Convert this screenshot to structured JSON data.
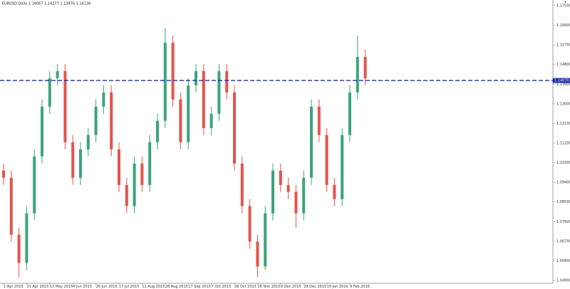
{
  "chart_data": {
    "type": "candlestick",
    "title": "EURUSD,Daily  1.14067 1.14277 1.13976 1.14136",
    "categories": [
      "1 Apr 2015",
      null,
      null,
      "21 Apr 2015",
      null,
      null,
      "13 May 2015",
      null,
      null,
      "4 Jun 2015",
      null,
      null,
      "26 Jun 2015",
      null,
      null,
      "17 Jul 2015",
      null,
      null,
      "11 Aug 2015",
      null,
      null,
      "28 Aug 2015",
      null,
      null,
      "17 Sep 2015",
      null,
      null,
      "7 Oct 2015",
      null,
      null,
      "28 Oct 2015",
      null,
      null,
      "18 Nov 2015",
      null,
      null,
      "8 Dec 2015",
      null,
      null,
      "29 Dec 2015",
      null,
      null,
      "19 Jan 2016",
      null,
      null,
      "9 Feb 2016",
      null,
      null
    ],
    "open": [
      1.0994,
      1.0961,
      1.07,
      1.057,
      1.0798,
      1.1059,
      1.1287,
      1.1417,
      1.145,
      1.1124,
      1.0961,
      1.1091,
      1.1157,
      1.1287,
      1.1352,
      1.1091,
      1.0928,
      1.0831,
      1.1026,
      1.0928,
      1.1124,
      1.1222,
      1.158,
      1.132,
      1.1124,
      1.1385,
      1.145,
      1.1189,
      1.1254,
      1.145,
      1.1352,
      1.1026,
      1.0831,
      1.0668,
      1.0554,
      1.0798,
      1.0994,
      1.0928,
      1.0896,
      1.0798,
      1.0961,
      1.1287,
      1.1157,
      1.0928,
      1.0863,
      1.1157,
      1.1352,
      1.1515
    ],
    "high": [
      1.1026,
      1.0994,
      1.0733,
      1.0831,
      1.1091,
      1.132,
      1.145,
      1.1483,
      1.1483,
      1.1157,
      1.1124,
      1.1189,
      1.132,
      1.1385,
      1.1385,
      1.1124,
      1.0961,
      1.1059,
      1.1059,
      1.1157,
      1.1254,
      1.1646,
      1.1613,
      1.1352,
      1.1417,
      1.1483,
      1.1483,
      1.1287,
      1.1483,
      1.1483,
      1.1385,
      1.1059,
      1.0863,
      1.07,
      1.0831,
      1.1026,
      1.1026,
      1.0961,
      1.0928,
      1.0994,
      1.132,
      1.132,
      1.1189,
      1.0961,
      1.1189,
      1.1385,
      1.1613,
      1.1548
    ],
    "low": [
      1.0928,
      1.0668,
      1.0505,
      1.0537,
      1.0765,
      1.1026,
      1.1254,
      1.1385,
      1.1091,
      1.0928,
      1.0928,
      1.1059,
      1.1124,
      1.1254,
      1.1059,
      1.0896,
      1.0798,
      1.0798,
      1.0896,
      1.0896,
      1.1091,
      1.1189,
      1.1287,
      1.1091,
      1.1091,
      1.1352,
      1.1157,
      1.1157,
      1.1222,
      1.132,
      1.0994,
      1.0798,
      1.0635,
      1.0505,
      1.0537,
      1.0765,
      1.0896,
      1.0863,
      1.0733,
      1.0765,
      1.0928,
      1.1124,
      1.0896,
      1.0831,
      1.0831,
      1.1124,
      1.132,
      1.1385
    ],
    "close": [
      1.0961,
      1.07,
      1.057,
      1.0798,
      1.1059,
      1.1287,
      1.1417,
      1.145,
      1.1124,
      1.0961,
      1.1091,
      1.1157,
      1.1287,
      1.1352,
      1.1091,
      1.0928,
      1.0831,
      1.1026,
      1.0928,
      1.1124,
      1.1222,
      1.158,
      1.132,
      1.1124,
      1.1385,
      1.145,
      1.1189,
      1.1254,
      1.145,
      1.1352,
      1.1026,
      1.0831,
      1.0668,
      1.0554,
      1.0798,
      1.0994,
      1.0928,
      1.0896,
      1.0798,
      1.0961,
      1.1287,
      1.1157,
      1.0928,
      1.0863,
      1.1157,
      1.1352,
      1.1515,
      1.1417
    ],
    "up_color": "#3aa57a",
    "down_color": "#e5534b",
    "ylim": [
      1.0477,
      1.1776
    ],
    "yticks": [
      {
        "value": 1.049,
        "label": "1.04900"
      },
      {
        "value": 1.058,
        "label": "1.05800"
      },
      {
        "value": 1.067,
        "label": "1.06700"
      },
      {
        "value": 1.076,
        "label": "1.07600"
      },
      {
        "value": 1.085,
        "label": "1.08500"
      },
      {
        "value": 1.094,
        "label": "1.09400"
      },
      {
        "value": 1.103,
        "label": "1.10300"
      },
      {
        "value": 1.112,
        "label": "1.11200"
      },
      {
        "value": 1.121,
        "label": "1.12100"
      },
      {
        "value": 1.13,
        "label": "1.13000"
      },
      {
        "value": 1.139,
        "label": "1.13900"
      },
      {
        "value": 1.148,
        "label": "1.14800"
      },
      {
        "value": 1.157,
        "label": "1.15700"
      },
      {
        "value": 1.166,
        "label": "1.16600"
      },
      {
        "value": 1.175,
        "label": "1.17500"
      }
    ],
    "hline": {
      "value": 1.1407,
      "label": "1.14070",
      "color": "#1a2fa0"
    },
    "grid": false
  }
}
